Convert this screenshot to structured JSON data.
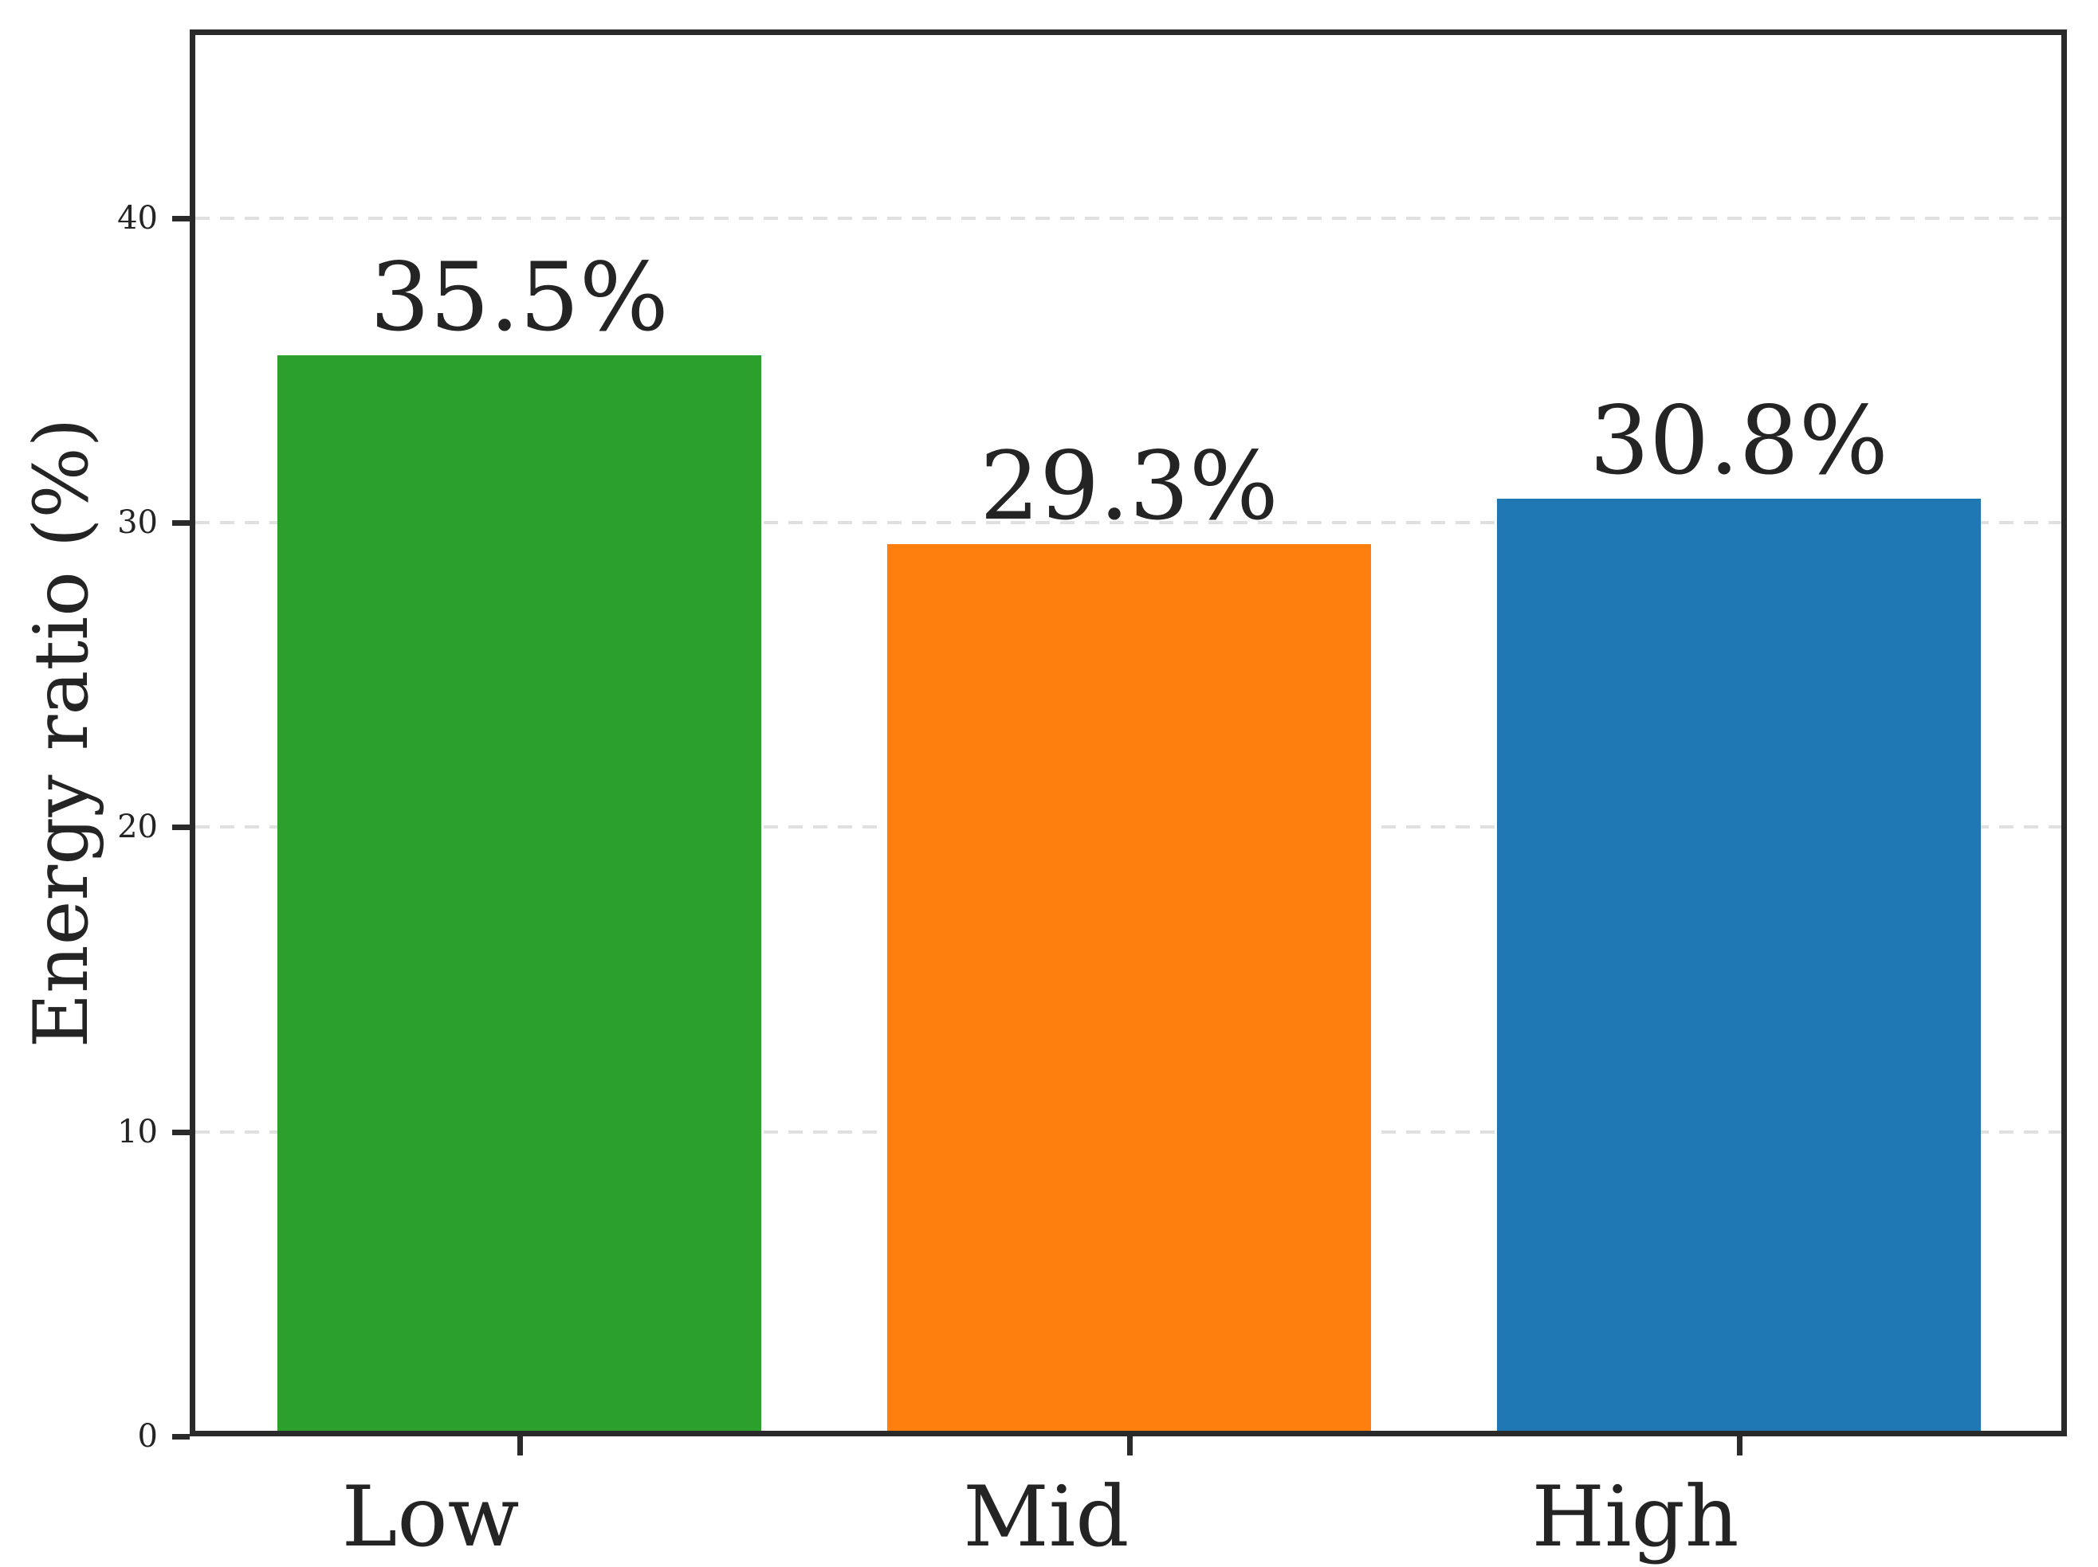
{
  "chart_data": {
    "type": "bar",
    "title": "",
    "xlabel": "",
    "ylabel": "Energy ratio (%)",
    "categories": [
      "Low",
      "Mid",
      "High"
    ],
    "values": [
      35.5,
      29.3,
      30.8
    ],
    "value_labels": [
      "35.5%",
      "29.3%",
      "30.8%"
    ],
    "bar_colors": [
      "#2ca02c",
      "#ff7f0e",
      "#1f77b4"
    ],
    "ylim": [
      0,
      46.2
    ],
    "yticks": [
      0,
      10,
      20,
      30,
      40
    ],
    "ytick_labels": [
      "0",
      "10",
      "20",
      "30",
      "40"
    ],
    "grid": "horizontal-dashed",
    "legend_position": "none",
    "xtick_label_alignment": "right-of-tick",
    "bar_width_fraction": 0.8
  },
  "style": {
    "background": "#ffffff",
    "spine_color": "#2a2a2a",
    "grid_color": "#e0e0e0",
    "text_color": "#242424"
  }
}
